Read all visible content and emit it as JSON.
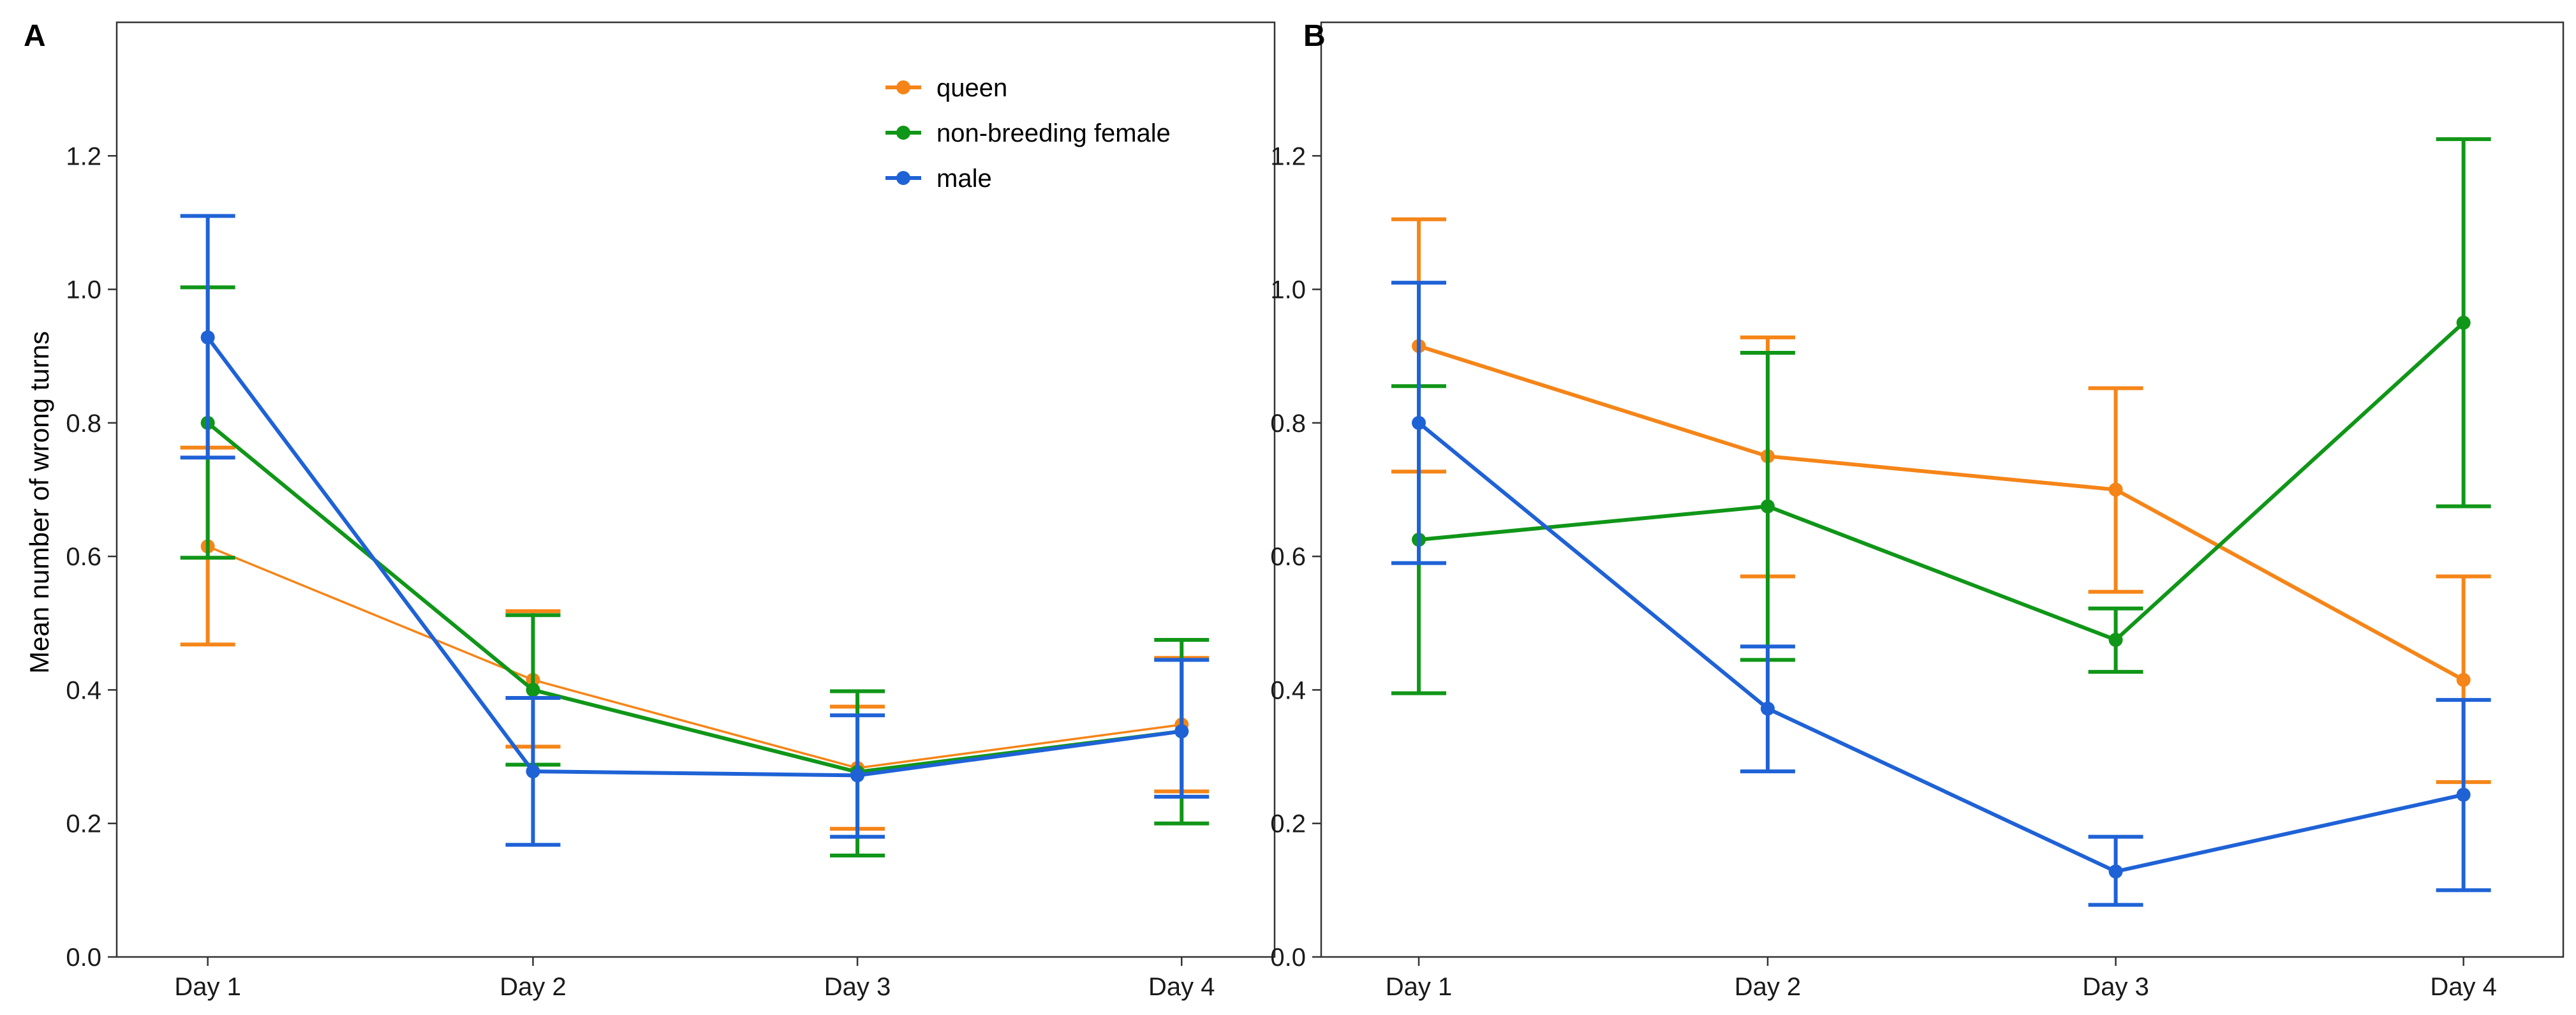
{
  "colors": {
    "queen": "#F58518",
    "non_breeding_female": "#109618",
    "male": "#1F62D6"
  },
  "chart_data": [
    {
      "panel_label": "A",
      "type": "line",
      "ylabel": "Mean number of wrong turns",
      "xlabel": "",
      "categories": [
        "Day 1",
        "Day 2",
        "Day 3",
        "Day 4"
      ],
      "ylim": [
        0,
        1.4
      ],
      "yticks": [
        0.0,
        0.2,
        0.4,
        0.6,
        0.8,
        1.0,
        1.2
      ],
      "ytick_labels": [
        "0.0",
        "0.2",
        "0.4",
        "0.6",
        "0.8",
        "1.0",
        "1.2"
      ],
      "grid": false,
      "legend": {
        "position": "top-right",
        "entries": [
          "queen",
          "non-breeding female",
          "male"
        ]
      },
      "series": [
        {
          "name": "queen",
          "color_key": "queen",
          "values": [
            0.615,
            0.415,
            0.283,
            0.348
          ],
          "err_low": [
            0.468,
            0.315,
            0.192,
            0.248
          ],
          "err_high": [
            0.763,
            0.518,
            0.375,
            0.448
          ]
        },
        {
          "name": "non-breeding female",
          "color_key": "non_breeding_female",
          "values": [
            0.8,
            0.4,
            0.277,
            0.338
          ],
          "err_low": [
            0.598,
            0.288,
            0.152,
            0.2
          ],
          "err_high": [
            1.003,
            0.512,
            0.398,
            0.475
          ]
        },
        {
          "name": "male",
          "color_key": "male",
          "values": [
            0.928,
            0.278,
            0.272,
            0.338
          ],
          "err_low": [
            0.748,
            0.168,
            0.18,
            0.24
          ],
          "err_high": [
            1.11,
            0.388,
            0.362,
            0.445
          ]
        }
      ]
    },
    {
      "panel_label": "B",
      "type": "line",
      "ylabel": "",
      "xlabel": "",
      "categories": [
        "Day 1",
        "Day 2",
        "Day 3",
        "Day 4"
      ],
      "ylim": [
        0,
        1.4
      ],
      "yticks": [
        0.0,
        0.2,
        0.4,
        0.6,
        0.8,
        1.0,
        1.2
      ],
      "ytick_labels": [
        "0.0",
        "0.2",
        "0.4",
        "0.6",
        "0.8",
        "1.0",
        "1.2"
      ],
      "grid": false,
      "legend": null,
      "series": [
        {
          "name": "queen",
          "color_key": "queen",
          "values": [
            0.915,
            0.75,
            0.7,
            0.415
          ],
          "err_low": [
            0.727,
            0.57,
            0.547,
            0.262
          ],
          "err_high": [
            1.105,
            0.928,
            0.852,
            0.57
          ]
        },
        {
          "name": "non-breeding female",
          "color_key": "non_breeding_female",
          "values": [
            0.625,
            0.675,
            0.475,
            0.95
          ],
          "err_low": [
            0.395,
            0.445,
            0.427,
            0.675
          ],
          "err_high": [
            0.855,
            0.905,
            0.522,
            1.225
          ]
        },
        {
          "name": "male",
          "color_key": "male",
          "values": [
            0.8,
            0.372,
            0.128,
            0.243
          ],
          "err_low": [
            0.59,
            0.278,
            0.078,
            0.1
          ],
          "err_high": [
            1.01,
            0.465,
            0.18,
            0.385
          ]
        }
      ]
    }
  ]
}
